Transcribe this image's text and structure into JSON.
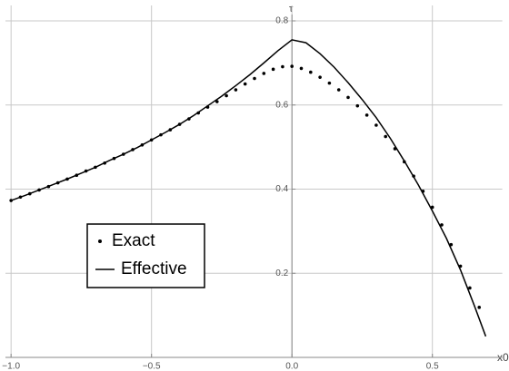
{
  "chart_data": {
    "type": "line",
    "xlabel": "x0",
    "ylabel": "τ",
    "xlim": [
      -1.02,
      0.71
    ],
    "ylim": [
      0,
      0.8
    ],
    "xticks": [
      {
        "value": -1.0,
        "label": "−1.0"
      },
      {
        "value": -0.5,
        "label": "−0.5"
      },
      {
        "value": 0,
        "label": "0.0"
      },
      {
        "value": 0.5,
        "label": "0.5"
      }
    ],
    "yticks": [
      0.2,
      0.4,
      0.6,
      0.8
    ],
    "grid": true,
    "legend_loc": "lower left",
    "series": [
      {
        "name": "Exact",
        "type": "scatter",
        "color": "#000000",
        "x": [
          -1.0,
          -0.9667,
          -0.9333,
          -0.9,
          -0.8667,
          -0.8333,
          -0.8,
          -0.7667,
          -0.7333,
          -0.7,
          -0.6667,
          -0.6333,
          -0.6,
          -0.5667,
          -0.5333,
          -0.5,
          -0.4667,
          -0.4333,
          -0.4,
          -0.3667,
          -0.3333,
          -0.3,
          -0.2667,
          -0.2333,
          -0.2,
          -0.1667,
          -0.1333,
          -0.1,
          -0.0667,
          -0.0333,
          0,
          0.0333,
          0.0667,
          0.1,
          0.1333,
          0.1667,
          0.2,
          0.2333,
          0.2667,
          0.3,
          0.3333,
          0.3667,
          0.4,
          0.4333,
          0.4667,
          0.5,
          0.5333,
          0.5667,
          0.6,
          0.6333,
          0.6667
        ],
        "values": [
          0.373,
          0.381,
          0.389,
          0.398,
          0.406,
          0.415,
          0.424,
          0.433,
          0.443,
          0.452,
          0.462,
          0.473,
          0.483,
          0.494,
          0.505,
          0.517,
          0.529,
          0.541,
          0.554,
          0.567,
          0.581,
          0.595,
          0.608,
          0.622,
          0.636,
          0.65,
          0.663,
          0.675,
          0.685,
          0.691,
          0.692,
          0.687,
          0.678,
          0.666,
          0.652,
          0.636,
          0.618,
          0.598,
          0.576,
          0.552,
          0.525,
          0.496,
          0.465,
          0.431,
          0.395,
          0.357,
          0.315,
          0.268,
          0.217,
          0.165,
          0.119
        ]
      },
      {
        "name": "Effective",
        "type": "line",
        "color": "#000000",
        "x": [
          -1.0,
          -0.95,
          -0.9,
          -0.85,
          -0.8,
          -0.75,
          -0.7,
          -0.65,
          -0.6,
          -0.55,
          -0.5,
          -0.45,
          -0.4,
          -0.35,
          -0.3,
          -0.25,
          -0.2,
          -0.15,
          -0.1,
          -0.05,
          0,
          0.05,
          0.1,
          0.15,
          0.2,
          0.25,
          0.3,
          0.35,
          0.4,
          0.45,
          0.5,
          0.55,
          0.6,
          0.65,
          0.69
        ],
        "values": [
          0.373,
          0.385,
          0.398,
          0.411,
          0.424,
          0.438,
          0.452,
          0.468,
          0.483,
          0.499,
          0.517,
          0.535,
          0.554,
          0.575,
          0.598,
          0.621,
          0.646,
          0.672,
          0.7,
          0.729,
          0.755,
          0.748,
          0.722,
          0.69,
          0.653,
          0.613,
          0.57,
          0.521,
          0.467,
          0.41,
          0.348,
          0.283,
          0.208,
          0.122,
          0.05
        ]
      }
    ]
  }
}
